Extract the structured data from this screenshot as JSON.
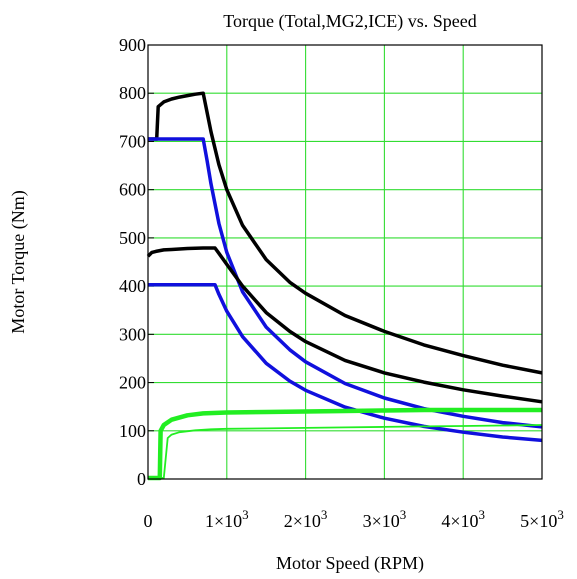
{
  "chart_data": {
    "type": "line",
    "title": "Torque (Total,MG2,ICE) vs. Speed",
    "xlabel": "Motor Speed (RPM)",
    "ylabel": "Motor Torque (Nm)",
    "xlim": [
      0,
      5000
    ],
    "ylim": [
      0,
      900
    ],
    "grid": true,
    "grid_color": "#33dd33",
    "x_ticks": [
      {
        "value": 0,
        "mant": "0",
        "exp": ""
      },
      {
        "value": 1000,
        "mant": "1×10",
        "exp": "3"
      },
      {
        "value": 2000,
        "mant": "2×10",
        "exp": "3"
      },
      {
        "value": 3000,
        "mant": "3×10",
        "exp": "3"
      },
      {
        "value": 4000,
        "mant": "4×10",
        "exp": "3"
      },
      {
        "value": 5000,
        "mant": "5×10",
        "exp": "3"
      }
    ],
    "y_ticks": [
      0,
      100,
      200,
      300,
      400,
      500,
      600,
      700,
      800,
      900
    ],
    "series": [
      {
        "color": "#000000",
        "width": 3.5,
        "x": [
          0,
          110,
          130,
          200,
          300,
          400,
          500,
          600,
          700,
          800,
          900,
          1000,
          1200,
          1500,
          1800,
          2000,
          2500,
          3000,
          3500,
          4000,
          4500,
          5000
        ],
        "y": [
          705,
          705,
          772,
          782,
          788,
          792,
          795,
          798,
          800,
          720,
          652,
          600,
          526,
          455,
          408,
          385,
          339,
          306,
          278,
          256,
          236,
          220
        ]
      },
      {
        "color": "#1010dd",
        "width": 3.5,
        "x": [
          0,
          200,
          400,
          600,
          700,
          750,
          800,
          900,
          1000,
          1200,
          1500,
          1800,
          2000,
          2500,
          3000,
          3500,
          4000,
          4500,
          5000
        ],
        "y": [
          705,
          705,
          705,
          705,
          705,
          660,
          612,
          530,
          470,
          388,
          315,
          268,
          243,
          198,
          168,
          146,
          130,
          117,
          108
        ]
      },
      {
        "color": "#000000",
        "width": 3.5,
        "x": [
          0,
          50,
          100,
          200,
          300,
          500,
          700,
          850,
          900,
          1000,
          1200,
          1500,
          1800,
          2000,
          2500,
          3000,
          3500,
          4000,
          4500,
          5000
        ],
        "y": [
          462,
          470,
          472,
          475,
          476,
          478,
          479,
          479,
          468,
          445,
          400,
          345,
          306,
          285,
          246,
          220,
          201,
          185,
          172,
          160
        ]
      },
      {
        "color": "#1010dd",
        "width": 3.5,
        "x": [
          0,
          200,
          400,
          600,
          800,
          850,
          900,
          1000,
          1200,
          1500,
          1800,
          2000,
          2500,
          3000,
          3500,
          4000,
          4500,
          5000
        ],
        "y": [
          403,
          403,
          403,
          403,
          403,
          403,
          383,
          348,
          295,
          240,
          203,
          184,
          149,
          126,
          109,
          97,
          87,
          80
        ]
      },
      {
        "color": "#22ee22",
        "width": 4.5,
        "x": [
          0,
          150,
          160,
          200,
          300,
          500,
          700,
          1000,
          1500,
          2000,
          2500,
          3000,
          3500,
          4000,
          4500,
          5000
        ],
        "y": [
          2,
          2,
          100,
          112,
          123,
          132,
          136,
          138,
          139,
          140,
          141,
          142,
          143,
          143,
          143,
          143
        ]
      },
      {
        "color": "#22ee22",
        "width": 1.8,
        "x": [
          0,
          200,
          250,
          300,
          400,
          600,
          800,
          1000,
          1500,
          2000,
          2500,
          3000,
          3500,
          4000,
          4500,
          5000
        ],
        "y": [
          2,
          2,
          85,
          92,
          97,
          101,
          103,
          104,
          105,
          106,
          107,
          108,
          109,
          110,
          111,
          112
        ]
      }
    ]
  }
}
